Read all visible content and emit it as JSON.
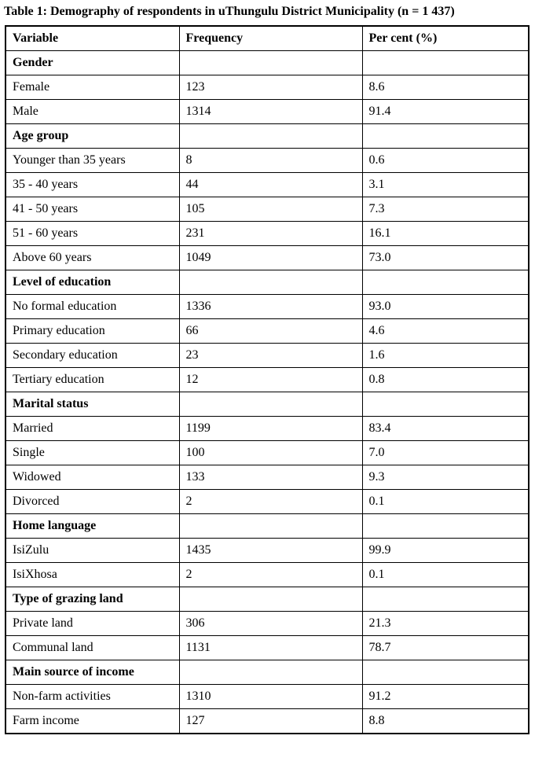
{
  "title": "Table 1: Demography of respondents in uThungulu District Municipality (n = 1 437)",
  "table": {
    "columns": [
      "Variable",
      "Frequency",
      "Per cent (%)"
    ],
    "rows": [
      {
        "type": "section",
        "label": "Gender"
      },
      {
        "type": "data",
        "variable": "Female",
        "frequency": "123",
        "percent": "8.6"
      },
      {
        "type": "data",
        "variable": "Male",
        "frequency": "1314",
        "percent": "91.4"
      },
      {
        "type": "section",
        "label": "Age group"
      },
      {
        "type": "data",
        "variable": "Younger than 35 years",
        "frequency": "8",
        "percent": "0.6"
      },
      {
        "type": "data",
        "variable": "35 - 40 years",
        "frequency": "44",
        "percent": "3.1"
      },
      {
        "type": "data",
        "variable": "41 - 50 years",
        "frequency": "105",
        "percent": "7.3"
      },
      {
        "type": "data",
        "variable": "51 - 60 years",
        "frequency": "231",
        "percent": "16.1"
      },
      {
        "type": "data",
        "variable": "Above 60 years",
        "frequency": "1049",
        "percent": "73.0"
      },
      {
        "type": "section",
        "label": "Level of education"
      },
      {
        "type": "data",
        "variable": "No formal education",
        "frequency": "1336",
        "percent": "93.0"
      },
      {
        "type": "data",
        "variable": "Primary education",
        "frequency": "66",
        "percent": "4.6"
      },
      {
        "type": "data",
        "variable": "Secondary education",
        "frequency": "23",
        "percent": "1.6"
      },
      {
        "type": "data",
        "variable": "Tertiary education",
        "frequency": "12",
        "percent": "0.8"
      },
      {
        "type": "section",
        "label": "Marital status"
      },
      {
        "type": "data",
        "variable": "Married",
        "frequency": "1199",
        "percent": "83.4"
      },
      {
        "type": "data",
        "variable": "Single",
        "frequency": "100",
        "percent": "7.0"
      },
      {
        "type": "data",
        "variable": "Widowed",
        "frequency": "133",
        "percent": "9.3"
      },
      {
        "type": "data",
        "variable": "Divorced",
        "frequency": "2",
        "percent": "0.1"
      },
      {
        "type": "section",
        "label": "Home language"
      },
      {
        "type": "data",
        "variable": "IsiZulu",
        "frequency": "1435",
        "percent": "99.9"
      },
      {
        "type": "data",
        "variable": "IsiXhosa",
        "frequency": "2",
        "percent": "0.1"
      },
      {
        "type": "section",
        "label": "Type of grazing land"
      },
      {
        "type": "data",
        "variable": "Private land",
        "frequency": "306",
        "percent": "21.3"
      },
      {
        "type": "data",
        "variable": "Communal land",
        "frequency": "1131",
        "percent": "78.7"
      },
      {
        "type": "section",
        "label": "Main source of income"
      },
      {
        "type": "data",
        "variable": "Non-farm activities",
        "frequency": "1310",
        "percent": "91.2"
      },
      {
        "type": "data",
        "variable": "Farm income",
        "frequency": "127",
        "percent": "8.8"
      }
    ]
  }
}
